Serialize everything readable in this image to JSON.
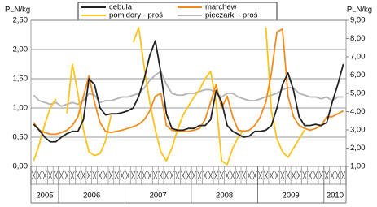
{
  "chart_data": {
    "type": "line",
    "y_label": "PLN/kg",
    "y2_label": "PLN/kg",
    "categories": [
      null,
      null,
      null,
      null,
      null,
      null,
      null,
      null,
      null,
      null,
      null,
      null,
      null,
      null,
      null,
      null,
      null,
      null,
      null,
      null,
      null,
      null,
      null,
      null,
      null,
      null,
      null,
      null,
      null,
      null,
      null,
      null,
      null,
      null,
      null,
      null,
      null,
      null,
      null,
      null,
      null,
      null,
      null,
      null,
      null,
      null,
      null,
      null,
      null,
      null,
      null,
      null,
      null,
      null,
      null,
      null,
      null
    ],
    "year_groups": [
      {
        "label": "2005",
        "count": 5
      },
      {
        "label": "2006",
        "count": 12
      },
      {
        "label": "2007",
        "count": 12
      },
      {
        "label": "2008",
        "count": 12
      },
      {
        "label": "2009",
        "count": 12
      },
      {
        "label": "2010",
        "count": 4
      }
    ],
    "ylim": [
      0,
      2.5
    ],
    "yticks": [
      {
        "value": 0,
        "label": "0,00"
      },
      {
        "value": 0.5,
        "label": "0,50"
      },
      {
        "value": 1,
        "label": "1,00"
      },
      {
        "value": 1.5,
        "label": "1,50"
      },
      {
        "value": 2,
        "label": "2,00"
      },
      {
        "value": 2.5,
        "label": "2,50"
      }
    ],
    "y2lim": [
      1,
      9
    ],
    "y2ticks": [
      {
        "value": 1,
        "label": "1,00"
      },
      {
        "value": 2,
        "label": "2,00"
      },
      {
        "value": 3,
        "label": "3,00"
      },
      {
        "value": 4,
        "label": "4,00"
      },
      {
        "value": 5,
        "label": "5,00"
      },
      {
        "value": 6,
        "label": "6,00"
      },
      {
        "value": 7,
        "label": "7,00"
      },
      {
        "value": 8,
        "label": "8,00"
      },
      {
        "value": 9,
        "label": "9,00"
      }
    ],
    "grid": true,
    "series": [
      {
        "name": "cebula",
        "color": "#222222",
        "values": [
          0.72,
          0.62,
          0.5,
          0.42,
          0.42,
          0.5,
          0.56,
          0.6,
          0.6,
          0.8,
          1.5,
          1.4,
          1.0,
          0.88,
          0.9,
          0.9,
          0.92,
          0.95,
          1.0,
          1.2,
          1.5,
          1.9,
          2.15,
          1.6,
          0.9,
          0.65,
          0.62,
          0.62,
          0.65,
          0.65,
          0.7,
          0.7,
          0.8,
          1.3,
          1.1,
          0.7,
          0.6,
          0.55,
          0.5,
          0.52,
          0.6,
          0.6,
          0.62,
          0.7,
          1.0,
          1.4,
          1.6,
          1.3,
          0.85,
          0.7,
          0.7,
          0.72,
          0.7,
          0.75,
          1.1,
          1.4,
          1.75
        ]
      },
      {
        "name": "marchew",
        "color": "#f08c1e",
        "values": [
          0.75,
          0.62,
          0.58,
          0.55,
          0.55,
          0.58,
          0.62,
          0.7,
          0.85,
          1.2,
          1.55,
          1.1,
          0.75,
          0.6,
          0.58,
          0.6,
          0.62,
          0.65,
          0.68,
          0.72,
          0.8,
          0.95,
          1.2,
          1.25,
          0.7,
          0.62,
          0.6,
          0.6,
          0.6,
          0.62,
          0.65,
          0.8,
          1.1,
          1.4,
          1.0,
          1.2,
          0.85,
          0.62,
          0.6,
          0.62,
          0.7,
          0.85,
          1.1,
          1.6,
          2.3,
          2.35,
          1.2,
          0.85,
          0.7,
          0.65,
          0.62,
          0.65,
          0.7,
          0.85,
          0.85,
          0.9,
          0.95
        ]
      },
      {
        "name": "pomidory  - proś",
        "color": "#ffc21a",
        "axis": "y2",
        "values": [
          1.3,
          2.2,
          3.3,
          4.2,
          4.7,
          null,
          3.9,
          6.6,
          5.0,
          3.0,
          1.8,
          1.6,
          1.7,
          2.4,
          3.8,
          null,
          null,
          null,
          7.8,
          8.6,
          6.4,
          4.5,
          3.0,
          1.8,
          1.3,
          2.0,
          3.0,
          3.8,
          4.3,
          4.8,
          5.2,
          5.8,
          6.2,
          4.5,
          1.3,
          1.1,
          2.0,
          2.6,
          3.0,
          null,
          null,
          null,
          8.6,
          4.0,
          2.5,
          1.8,
          1.5,
          2.0,
          2.5,
          3.0,
          null,
          null,
          null,
          null,
          null,
          null,
          null
        ]
      },
      {
        "name": "pieczarki - proś",
        "color": "#b4b4b4",
        "axis": "y2",
        "values": [
          4.9,
          4.6,
          4.5,
          4.4,
          4.5,
          4.3,
          4.4,
          4.5,
          4.4,
          4.6,
          5.0,
          4.9,
          4.5,
          4.6,
          4.6,
          4.7,
          4.8,
          4.8,
          4.9,
          5.0,
          5.3,
          5.7,
          6.0,
          6.2,
          5.5,
          5.0,
          4.9,
          4.9,
          5.0,
          5.0,
          5.1,
          5.2,
          5.2,
          5.0,
          4.8,
          5.0,
          5.0,
          4.8,
          4.7,
          4.6,
          4.6,
          4.7,
          4.8,
          4.9,
          5.0,
          5.2,
          5.3,
          5.3,
          5.0,
          4.9,
          4.8,
          4.8,
          4.7,
          4.8,
          4.6,
          4.8,
          4.8
        ]
      }
    ]
  }
}
